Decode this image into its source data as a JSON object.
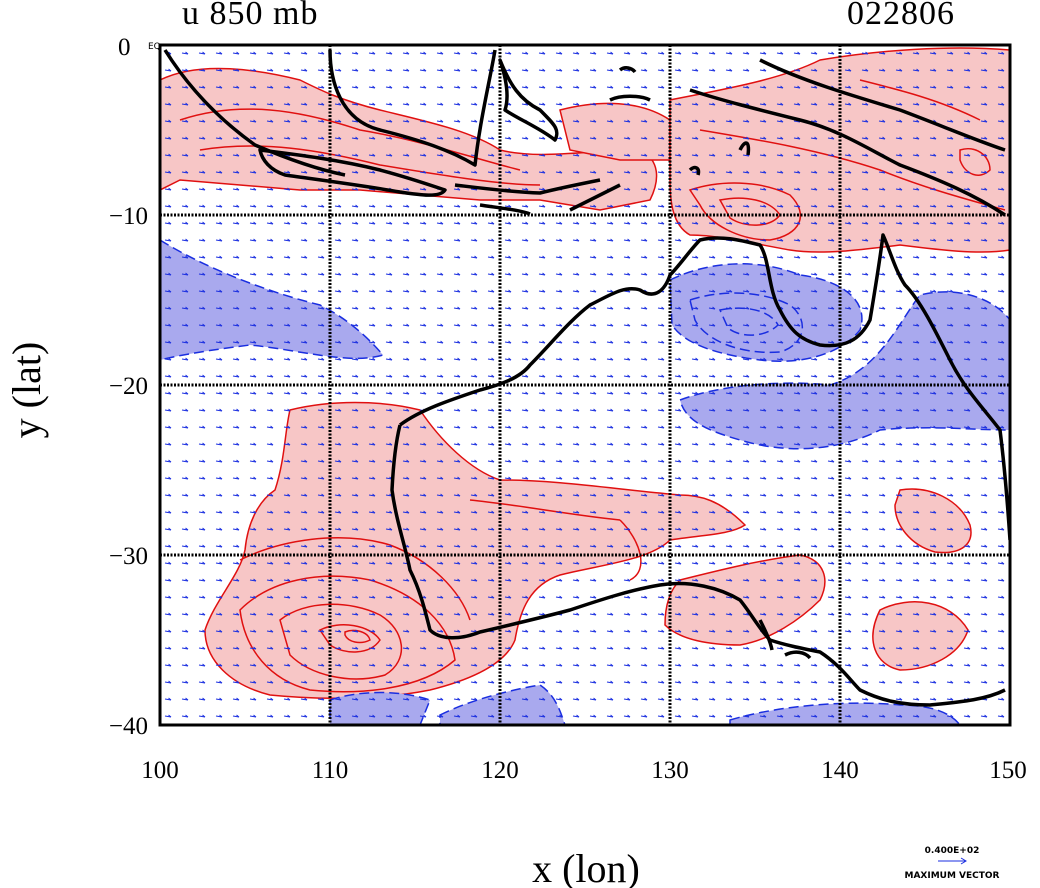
{
  "title": {
    "left": "u 850 mb",
    "right": "022806"
  },
  "corner_label": "0",
  "corner_sublabel": "EQ",
  "axes": {
    "x_label": "x (lon)",
    "y_label": "y (lat)",
    "x_ticks": [
      "100",
      "110",
      "120",
      "130",
      "140",
      "150"
    ],
    "y_ticks": [
      "−10",
      "−20",
      "−30",
      "−40"
    ],
    "x_range": [
      100,
      150
    ],
    "y_range": [
      -40,
      0
    ]
  },
  "legend": {
    "vector_value": "0.400E+02",
    "vector_label": "MAXIMUM VECTOR"
  },
  "colors": {
    "positive_fill": "#f7c6c6",
    "positive_line": "#e01010",
    "negative_fill": "#a9a9ee",
    "negative_line": "#1a2ee0",
    "vector": "#1a2ee0",
    "coast": "#000000"
  },
  "style": {
    "grid": "on",
    "contours": "filled",
    "vectors": "on"
  }
}
